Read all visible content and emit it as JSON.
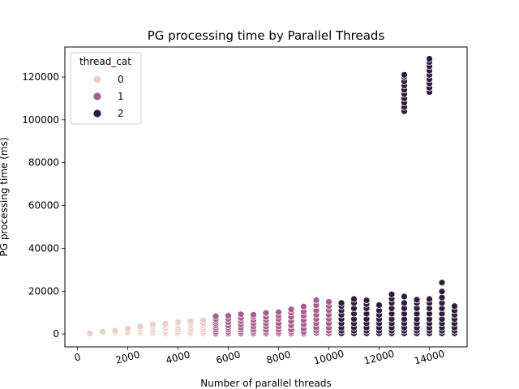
{
  "chart_data": {
    "type": "scatter",
    "title": "PG processing time by Parallel Threads",
    "xlabel": "Number of parallel threads",
    "ylabel": "PG processing time (ms)",
    "xlim": [
      -500,
      15500
    ],
    "ylim": [
      -6000,
      134000
    ],
    "x_ticks": [
      0,
      2000,
      4000,
      6000,
      8000,
      10000,
      12000,
      14000
    ],
    "x_tick_labels": [
      "0",
      "2000",
      "4000",
      "6000",
      "8000",
      "10000",
      "12000",
      "14000"
    ],
    "y_ticks": [
      0,
      20000,
      40000,
      60000,
      80000,
      100000,
      120000
    ],
    "y_tick_labels": [
      "0",
      "20000",
      "40000",
      "60000",
      "80000",
      "100000",
      "120000"
    ],
    "x_tick_rotation": 15,
    "grid": false,
    "legend": {
      "title": "thread_cat",
      "placement": "top-left",
      "entries": [
        {
          "label": "0",
          "color": "#e9cfc9"
        },
        {
          "label": "1",
          "color": "#a95f8d"
        },
        {
          "label": "2",
          "color": "#2d1e3e"
        }
      ]
    },
    "series": [
      {
        "name": "0",
        "color": "#e9cfc9",
        "points": [
          {
            "x": 500,
            "y_values": [
              0,
              300
            ]
          },
          {
            "x": 1000,
            "y_values": [
              300,
              700,
              1100
            ]
          },
          {
            "x": 1500,
            "y_values": [
              400,
              800,
              1500
            ]
          },
          {
            "x": 2000,
            "y_values": [
              600,
              1500,
              2500
            ]
          },
          {
            "x": 2500,
            "y_values": [
              400,
              1200,
              2000,
              2800,
              3500
            ]
          },
          {
            "x": 3000,
            "y_values": [
              500,
              1500,
              2500,
              3500,
              4500
            ]
          },
          {
            "x": 3500,
            "y_values": [
              300,
              1200,
              2200,
              3000,
              4000,
              4800
            ]
          },
          {
            "x": 4000,
            "y_values": [
              300,
              1000,
              2000,
              3000,
              4000,
              5000,
              5500
            ]
          },
          {
            "x": 4500,
            "y_values": [
              200,
              1000,
              2000,
              3000,
              4000,
              5000,
              6000
            ]
          },
          {
            "x": 5000,
            "y_values": [
              200,
              1000,
              2000,
              3000,
              4000,
              5000,
              6500
            ]
          }
        ]
      },
      {
        "name": "1",
        "color": "#a95f8d",
        "points": [
          {
            "x": 5500,
            "y_values": [
              200,
              1000,
              2000,
              3000,
              4000,
              5000,
              6000,
              7000,
              8300
            ]
          },
          {
            "x": 6000,
            "y_values": [
              200,
              1000,
              2000,
              3000,
              4000,
              5500,
              7000,
              8500
            ]
          },
          {
            "x": 6500,
            "y_values": [
              200,
              1000,
              2000,
              3000,
              4500,
              6000,
              7500,
              9200
            ]
          },
          {
            "x": 7000,
            "y_values": [
              200,
              1000,
              2000,
              3500,
              5000,
              6500,
              8000,
              9000
            ]
          },
          {
            "x": 7500,
            "y_values": [
              200,
              1000,
              2000,
              3500,
              5000,
              6500,
              8000,
              9800
            ]
          },
          {
            "x": 8000,
            "y_values": [
              200,
              1000,
              2000,
              3500,
              5000,
              7000,
              8500,
              10200
            ]
          },
          {
            "x": 8500,
            "y_values": [
              200,
              1000,
              2000,
              4000,
              6000,
              8000,
              10000,
              11500
            ]
          },
          {
            "x": 9000,
            "y_values": [
              200,
              1000,
              2500,
              4500,
              6500,
              8500,
              10500,
              12800
            ]
          },
          {
            "x": 9500,
            "y_values": [
              500,
              1500,
              3000,
              5000,
              7000,
              9000,
              11000,
              13500,
              15800
            ]
          },
          {
            "x": 10000,
            "y_values": [
              300,
              1500,
              3000,
              5000,
              7000,
              9000,
              11000,
              13000,
              15000
            ]
          }
        ]
      },
      {
        "name": "2",
        "color": "#2d1e3e",
        "points": [
          {
            "x": 10500,
            "y_values": [
              300,
              1500,
              3000,
              5000,
              7000,
              9000,
              11000,
              13000,
              14500
            ]
          },
          {
            "x": 11000,
            "y_values": [
              300,
              1500,
              3000,
              5000,
              7000,
              9500,
              12000,
              14500,
              16300
            ]
          },
          {
            "x": 11500,
            "y_values": [
              300,
              1500,
              3000,
              5000,
              7000,
              9500,
              12000,
              14000,
              15700
            ]
          },
          {
            "x": 12000,
            "y_values": [
              300,
              1500,
              3000,
              5000,
              7000,
              9000,
              11000,
              13500
            ]
          },
          {
            "x": 12500,
            "y_values": [
              300,
              1500,
              3000,
              5000,
              7000,
              9500,
              12000,
              14500,
              16500,
              18500
            ]
          },
          {
            "x": 13000,
            "y_values": [
              300,
              1500,
              3000,
              5000,
              7000,
              9500,
              12000,
              14500,
              17500,
              104000,
              106000,
              108000,
              110000,
              112000,
              114000,
              116000,
              118000,
              120000,
              121000
            ]
          },
          {
            "x": 13500,
            "y_values": [
              300,
              1500,
              3000,
              5000,
              7000,
              9500,
              12000,
              14500,
              16000
            ]
          },
          {
            "x": 14000,
            "y_values": [
              300,
              1500,
              3000,
              5000,
              7000,
              9500,
              12000,
              14500,
              16300,
              113000,
              115000,
              117000,
              119000,
              121000,
              123000,
              125000,
              127000,
              128500
            ]
          },
          {
            "x": 14500,
            "y_values": [
              300,
              1500,
              3000,
              5000,
              7000,
              9500,
              12000,
              14500,
              17000,
              19800,
              24000
            ]
          },
          {
            "x": 15000,
            "y_values": [
              300,
              1500,
              3000,
              5000,
              7000,
              9000,
              11000,
              13000
            ]
          }
        ]
      }
    ]
  }
}
